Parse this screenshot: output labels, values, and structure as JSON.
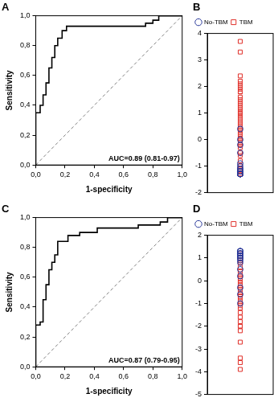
{
  "chart_data": [
    {
      "type": "line",
      "title": "A",
      "xlabel": "1-specificity",
      "ylabel": "Sensitivity",
      "annotation": "AUC=0.89 (0.81-0.97)",
      "xlim": [
        0,
        1
      ],
      "ylim": [
        0,
        1
      ],
      "xticks": [
        {
          "value": 0,
          "label": "0,0"
        },
        {
          "value": 0.2,
          "label": "0,2"
        },
        {
          "value": 0.4,
          "label": "0,4"
        },
        {
          "value": 0.6,
          "label": "0,6"
        },
        {
          "value": 0.8,
          "label": "0,8"
        },
        {
          "value": 1,
          "label": "1,0"
        }
      ],
      "yticks": [
        {
          "value": 0,
          "label": "0,0"
        },
        {
          "value": 0.2,
          "label": "0,2"
        },
        {
          "value": 0.4,
          "label": "0,4"
        },
        {
          "value": 0.6,
          "label": "0,6"
        },
        {
          "value": 0.8,
          "label": "0,8"
        },
        {
          "value": 1,
          "label": "1,0"
        }
      ],
      "grid": false,
      "series": [
        {
          "color": "#000000",
          "line_style": "solid",
          "x": [
            0,
            0,
            0.03,
            0.03,
            0.05,
            0.05,
            0.07,
            0.07,
            0.09,
            0.09,
            0.11,
            0.11,
            0.13,
            0.13,
            0.15,
            0.15,
            0.18,
            0.18,
            0.21,
            0.21,
            0.75,
            0.75,
            0.8,
            0.8,
            0.84,
            0.84,
            1
          ],
          "values": [
            0,
            0.35,
            0.35,
            0.4,
            0.4,
            0.47,
            0.47,
            0.55,
            0.55,
            0.65,
            0.65,
            0.72,
            0.72,
            0.8,
            0.8,
            0.85,
            0.85,
            0.9,
            0.9,
            0.93,
            0.93,
            0.95,
            0.95,
            0.97,
            0.97,
            1,
            1
          ]
        },
        {
          "color": "#808080",
          "line_style": "dashed",
          "x": [
            0,
            1
          ],
          "values": [
            0,
            1
          ]
        }
      ]
    },
    {
      "type": "strip",
      "title": "B",
      "ylim": [
        -2,
        4
      ],
      "yticks": [
        -2,
        -1,
        0,
        1,
        2,
        3,
        4
      ],
      "tick_labels": "y",
      "legend": "top",
      "series": [
        {
          "name": "No-TBM",
          "color": "#2b3a9a",
          "marker": "circle",
          "values": [
            0.4,
            0,
            -0.2,
            -0.5,
            -0.9,
            -1,
            -1.1,
            -1.1,
            -1.2,
            -1.2,
            -1.2,
            -1.3,
            -1.3,
            -1.3,
            -1.3,
            -1.3,
            -1.3
          ]
        },
        {
          "name": "TBM",
          "color": "#e0302a",
          "marker": "square",
          "values": [
            3.7,
            3.3,
            2.4,
            2.2,
            2.1,
            2,
            1.9,
            1.8,
            1.8,
            1.6,
            1.5,
            1.4,
            1.3,
            1.2,
            1.1,
            1,
            1,
            0.9,
            0.8,
            0.7,
            0.6,
            0.5,
            0.4,
            0.3,
            0.2,
            0.1,
            0,
            -0.1,
            -0.2,
            -0.3,
            -0.5,
            -0.6,
            -0.8,
            -1,
            -1.1,
            -1.2,
            -1.3,
            -1.3
          ]
        }
      ]
    },
    {
      "type": "line",
      "title": "C",
      "xlabel": "1-specificity",
      "ylabel": "Sensitivity",
      "annotation": "AUC=0.87 (0.79-0.95)",
      "xlim": [
        0,
        1
      ],
      "ylim": [
        0,
        1
      ],
      "xticks": [
        {
          "value": 0,
          "label": "0,0"
        },
        {
          "value": 0.2,
          "label": "0,2"
        },
        {
          "value": 0.4,
          "label": "0,4"
        },
        {
          "value": 0.6,
          "label": "0,6"
        },
        {
          "value": 0.8,
          "label": "0,8"
        },
        {
          "value": 1,
          "label": "1,0"
        }
      ],
      "yticks": [
        {
          "value": 0,
          "label": "0,0"
        },
        {
          "value": 0.2,
          "label": "0,2"
        },
        {
          "value": 0.4,
          "label": "0,4"
        },
        {
          "value": 0.6,
          "label": "0,6"
        },
        {
          "value": 0.8,
          "label": "0,8"
        },
        {
          "value": 1,
          "label": "1,0"
        }
      ],
      "grid": false,
      "series": [
        {
          "color": "#000000",
          "line_style": "solid",
          "x": [
            0,
            0,
            0.03,
            0.03,
            0.05,
            0.05,
            0.07,
            0.07,
            0.09,
            0.09,
            0.11,
            0.11,
            0.13,
            0.13,
            0.15,
            0.15,
            0.22,
            0.22,
            0.3,
            0.3,
            0.42,
            0.42,
            0.7,
            0.7,
            0.85,
            0.85,
            0.9,
            0.9,
            1
          ],
          "values": [
            0,
            0.28,
            0.28,
            0.3,
            0.3,
            0.45,
            0.45,
            0.55,
            0.55,
            0.65,
            0.65,
            0.7,
            0.7,
            0.75,
            0.75,
            0.84,
            0.84,
            0.88,
            0.88,
            0.9,
            0.9,
            0.93,
            0.93,
            0.95,
            0.95,
            0.97,
            0.97,
            1,
            1
          ]
        },
        {
          "color": "#808080",
          "line_style": "dashed",
          "x": [
            0,
            1
          ],
          "values": [
            0,
            1
          ]
        }
      ]
    },
    {
      "type": "strip",
      "title": "D",
      "ylim": [
        -5,
        2
      ],
      "yticks": [
        -5,
        -4,
        -3,
        -2,
        -1,
        0,
        1,
        2
      ],
      "tick_labels": "y",
      "legend": "top",
      "series": [
        {
          "name": "No-TBM",
          "color": "#2b3a9a",
          "marker": "circle",
          "values": [
            1.3,
            1.3,
            1.3,
            1.2,
            1.2,
            1.2,
            1.1,
            1.1,
            1,
            1,
            0.9,
            0.8,
            0.5,
            0.2,
            -0.3,
            -0.6,
            -1
          ]
        },
        {
          "name": "TBM",
          "color": "#e0302a",
          "marker": "square",
          "values": [
            1.2,
            1.1,
            1,
            0.9,
            0.8,
            0.6,
            0.4,
            0.3,
            0.2,
            0.1,
            0,
            -0.1,
            -0.2,
            -0.3,
            -0.4,
            -0.5,
            -0.6,
            -0.7,
            -0.8,
            -0.9,
            -1,
            -1.1,
            -1.2,
            -1.4,
            -1.6,
            -1.8,
            -2,
            -2,
            -2.2,
            -2.7,
            -3.4,
            -3.6,
            -3.9
          ]
        }
      ]
    }
  ]
}
